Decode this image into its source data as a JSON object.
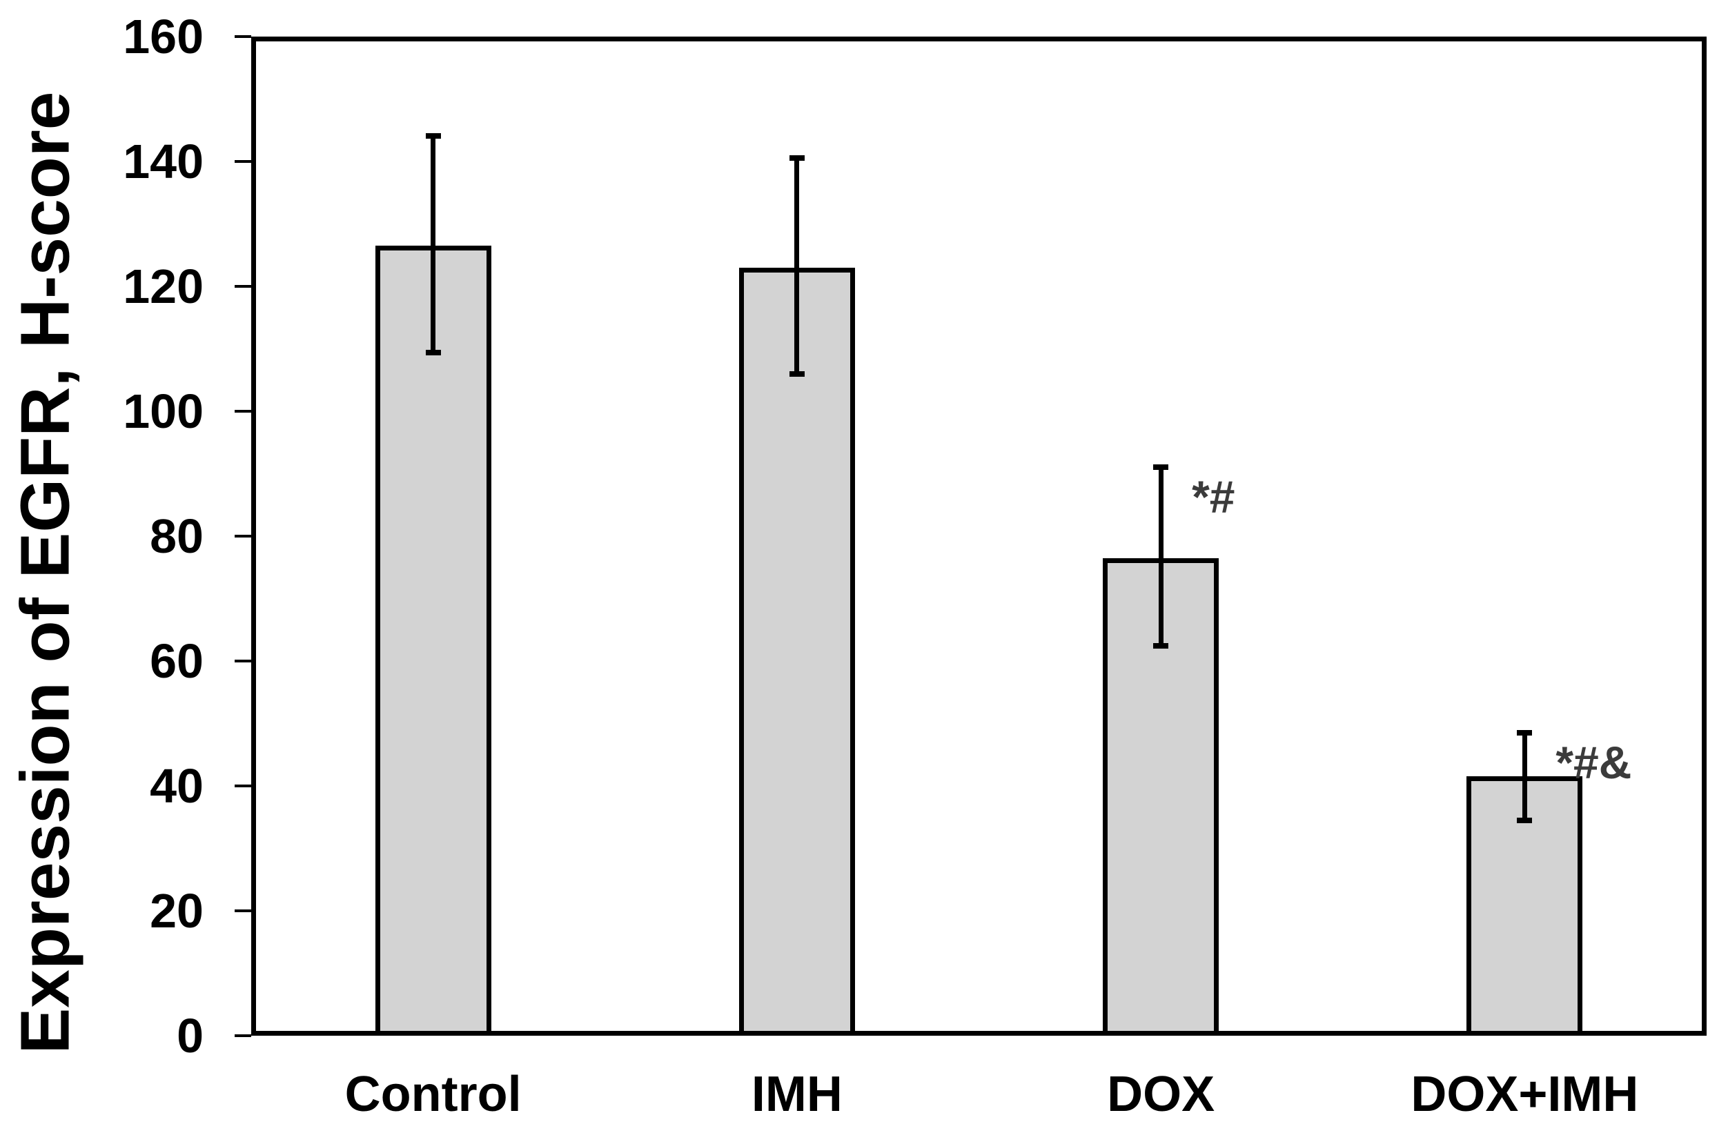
{
  "chart_data": {
    "type": "bar",
    "title": "",
    "xlabel": "",
    "ylabel": "Expression of EGFR, H-score",
    "ylim": [
      0,
      160
    ],
    "ytick_step": 20,
    "ytick_labels": [
      "0",
      "20",
      "40",
      "60",
      "80",
      "100",
      "120",
      "140",
      "160"
    ],
    "categories": [
      "Control",
      "IMH",
      "DOX",
      "DOX+IMH"
    ],
    "values": [
      126.5,
      123,
      76.5,
      41.5
    ],
    "errors_plus": [
      18,
      18,
      15,
      7.5
    ],
    "errors_minus": [
      17.5,
      17.5,
      14.5,
      7.5
    ],
    "annotations": [
      "",
      "",
      "*#",
      "*#&"
    ],
    "grid": false,
    "legend": null,
    "bar_fill_color": "#d3d3d3",
    "bar_border_color": "#000000",
    "error_bar_color": "#000000",
    "annotation_color": "#3b3b3b",
    "axis_color": "#000000",
    "background_color": "#ffffff"
  }
}
